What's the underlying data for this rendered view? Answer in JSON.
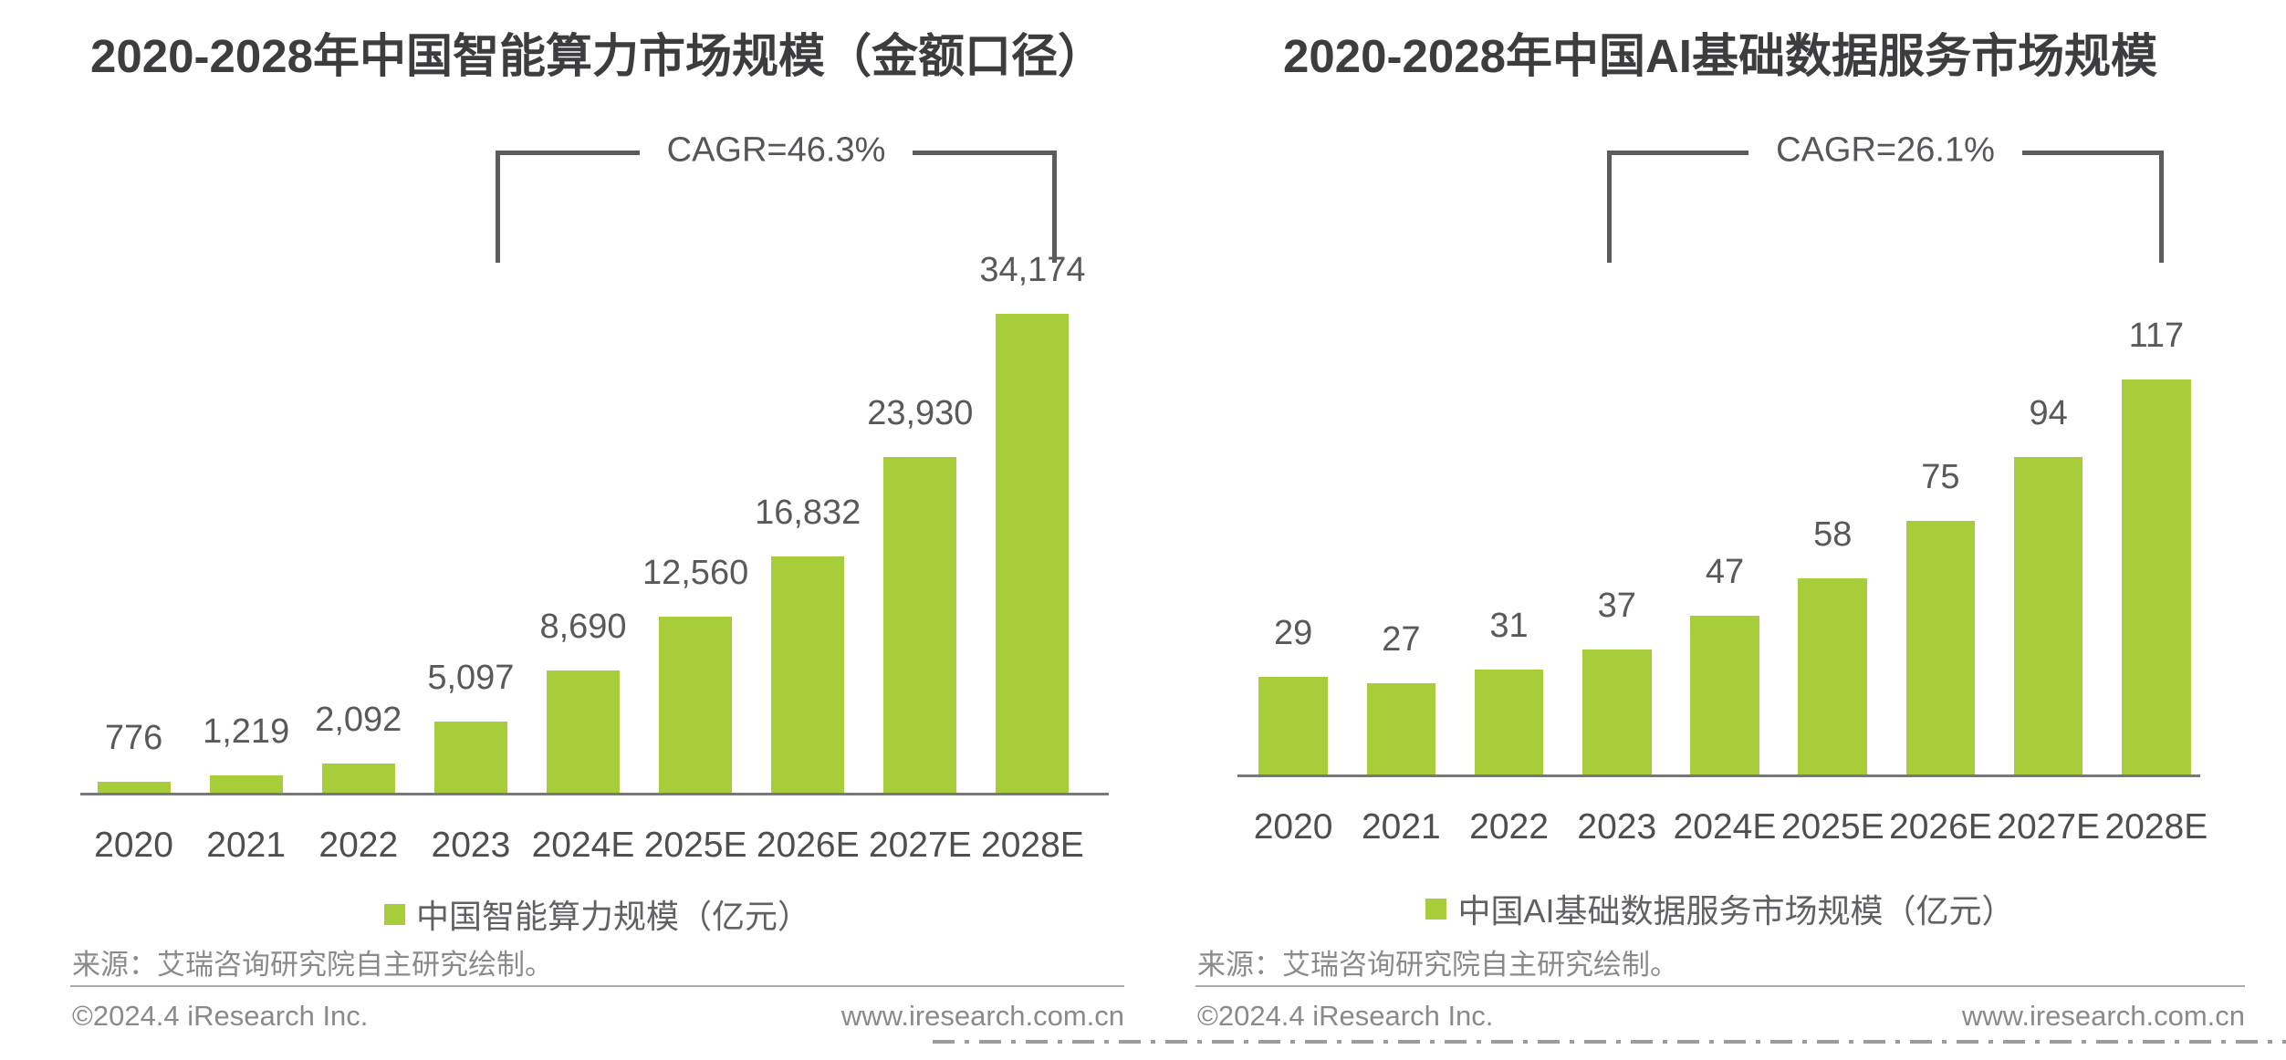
{
  "colors": {
    "bar_green": "#a8cd3a",
    "title_text": "#3d3d3f",
    "value_text": "#58595b",
    "axis_line": "#77787a",
    "footer_text": "#8a8a8a"
  },
  "chart_data": [
    {
      "type": "bar",
      "title": "2020-2028年中国智能算力市场规模（金额口径）",
      "cagr_label": "CAGR=46.3%",
      "categories": [
        "2020",
        "2021",
        "2022",
        "2023",
        "2024E",
        "2025E",
        "2026E",
        "2027E",
        "2028E"
      ],
      "values": [
        776,
        1219,
        2092,
        5097,
        8690,
        12560,
        16832,
        23930,
        34174
      ],
      "value_labels": [
        "776",
        "1,219",
        "2,092",
        "5,097",
        "8,690",
        "12,560",
        "16,832",
        "23,930",
        "34,174"
      ],
      "legend": "中国智能算力规模（亿元）",
      "unit": "亿元",
      "xlabel": "",
      "ylabel": "",
      "ylim": [
        0,
        34174
      ],
      "grid": false,
      "legend_position": "bottom",
      "bar_color": "#a8cd3a"
    },
    {
      "type": "bar",
      "title": "2020-2028年中国AI基础数据服务市场规模",
      "cagr_label": "CAGR=26.1%",
      "categories": [
        "2020",
        "2021",
        "2022",
        "2023",
        "2024E",
        "2025E",
        "2026E",
        "2027E",
        "2028E"
      ],
      "values": [
        29,
        27,
        31,
        37,
        47,
        58,
        75,
        94,
        117
      ],
      "value_labels": [
        "29",
        "27",
        "31",
        "37",
        "47",
        "58",
        "75",
        "94",
        "117"
      ],
      "legend": "中国AI基础数据服务市场规模（亿元）",
      "unit": "亿元",
      "xlabel": "",
      "ylabel": "",
      "ylim": [
        0,
        117
      ],
      "grid": false,
      "legend_position": "bottom",
      "bar_color": "#a8cd3a"
    }
  ],
  "panels": [
    {
      "source": "来源：艾瑞咨询研究院自主研究绘制。",
      "footer_left": "©2024.4 iResearch Inc.",
      "footer_right": "www.iresearch.com.cn"
    },
    {
      "source": "来源：艾瑞咨询研究院自主研究绘制。",
      "footer_left": "©2024.4 iResearch Inc.",
      "footer_right": "www.iresearch.com.cn"
    }
  ]
}
